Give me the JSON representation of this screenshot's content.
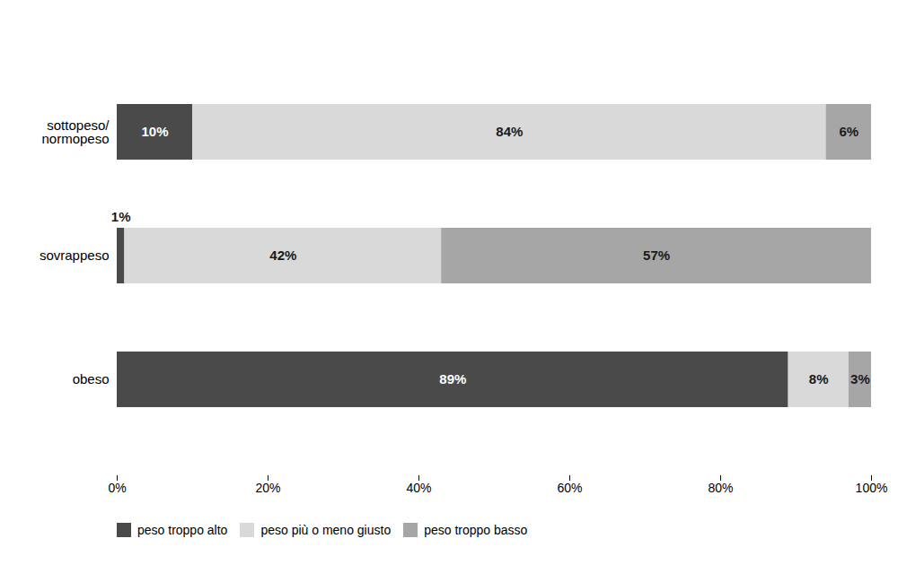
{
  "chart_data": {
    "type": "bar",
    "orientation": "horizontal",
    "stacked": true,
    "data_labels": true,
    "grid": false,
    "legend": "bottom",
    "categories": [
      "obeso",
      "sovrappeso",
      "sottopeso/\nnormopeso"
    ],
    "series": [
      {
        "name": "peso troppo alto",
        "color": "#4a4a4a",
        "values": [
          89,
          1,
          10
        ],
        "value_labels": [
          "89%",
          "1%",
          "10%"
        ]
      },
      {
        "name": "peso più o meno giusto",
        "color": "#d9d9d9",
        "values": [
          8,
          42,
          84
        ],
        "value_labels": [
          "8%",
          "42%",
          "84%"
        ]
      },
      {
        "name": "peso troppo basso",
        "color": "#a6a6a6",
        "values": [
          3,
          57,
          6
        ],
        "value_labels": [
          "3%",
          "57%",
          "6%"
        ]
      }
    ],
    "xlim": [
      0,
      100
    ],
    "xticks": [
      {
        "value": 0,
        "label": "0%"
      },
      {
        "value": 20,
        "label": "20%"
      },
      {
        "value": 40,
        "label": "40%"
      },
      {
        "value": 60,
        "label": "60%"
      },
      {
        "value": 80,
        "label": "80%"
      },
      {
        "value": 100,
        "label": "100%"
      }
    ]
  }
}
